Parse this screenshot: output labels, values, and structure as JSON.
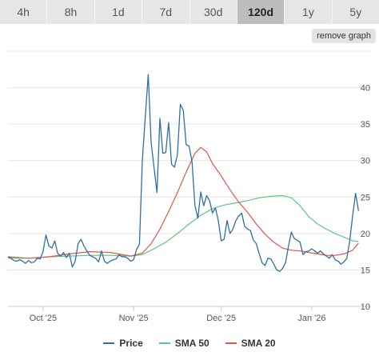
{
  "tabs": [
    {
      "label": "4h",
      "active": false
    },
    {
      "label": "8h",
      "active": false
    },
    {
      "label": "1d",
      "active": false
    },
    {
      "label": "7d",
      "active": false
    },
    {
      "label": "30d",
      "active": false
    },
    {
      "label": "120d",
      "active": true
    },
    {
      "label": "1y",
      "active": false
    },
    {
      "label": "5y",
      "active": false
    }
  ],
  "remove_graph_label": "remove graph",
  "colors": {
    "price": "#2f6fa3",
    "sma50": "#5cc97f",
    "sma20": "#e0554a",
    "grid": "#e6e6e6",
    "axis": "#c8c8c8"
  },
  "chart_data": {
    "type": "line",
    "title": "",
    "xlabel": "",
    "ylabel": "",
    "ylim": [
      10,
      45
    ],
    "yticks": [
      10,
      15,
      20,
      25,
      30,
      35,
      40
    ],
    "xlim": [
      "2025-09-19",
      "2026-01-21"
    ],
    "xticks": [
      {
        "label": "Oct '25",
        "date": "2025-10-01"
      },
      {
        "label": "Nov '25",
        "date": "2025-11-01"
      },
      {
        "label": "Dec '25",
        "date": "2025-12-01"
      },
      {
        "label": "Jan '26",
        "date": "2026-01-01"
      }
    ],
    "grid": true,
    "legend": "bottom",
    "series": [
      {
        "name": "Price",
        "color_key": "price",
        "points": [
          [
            "2025-09-19",
            16.8
          ],
          [
            "2025-09-20",
            16.6
          ],
          [
            "2025-09-21",
            16.3
          ],
          [
            "2025-09-22",
            16.2
          ],
          [
            "2025-09-23",
            16.4
          ],
          [
            "2025-09-24",
            16.2
          ],
          [
            "2025-09-25",
            15.9
          ],
          [
            "2025-09-26",
            16.3
          ],
          [
            "2025-09-27",
            16.0
          ],
          [
            "2025-09-28",
            16.1
          ],
          [
            "2025-09-29",
            16.6
          ],
          [
            "2025-09-30",
            16.5
          ],
          [
            "2025-10-01",
            17.5
          ],
          [
            "2025-10-02",
            19.8
          ],
          [
            "2025-10-03",
            18.3
          ],
          [
            "2025-10-04",
            18.0
          ],
          [
            "2025-10-05",
            19.0
          ],
          [
            "2025-10-06",
            17.3
          ],
          [
            "2025-10-07",
            16.9
          ],
          [
            "2025-10-08",
            17.4
          ],
          [
            "2025-10-09",
            16.7
          ],
          [
            "2025-10-10",
            17.3
          ],
          [
            "2025-10-11",
            15.4
          ],
          [
            "2025-10-12",
            16.2
          ],
          [
            "2025-10-13",
            18.6
          ],
          [
            "2025-10-14",
            19.2
          ],
          [
            "2025-10-15",
            18.3
          ],
          [
            "2025-10-16",
            17.6
          ],
          [
            "2025-10-17",
            17.0
          ],
          [
            "2025-10-18",
            16.8
          ],
          [
            "2025-10-19",
            16.6
          ],
          [
            "2025-10-20",
            16.1
          ],
          [
            "2025-10-21",
            17.6
          ],
          [
            "2025-10-22",
            16.2
          ],
          [
            "2025-10-23",
            15.9
          ],
          [
            "2025-10-24",
            16.2
          ],
          [
            "2025-10-25",
            16.4
          ],
          [
            "2025-10-26",
            16.5
          ],
          [
            "2025-10-27",
            17.1
          ],
          [
            "2025-10-28",
            16.8
          ],
          [
            "2025-10-29",
            16.8
          ],
          [
            "2025-10-30",
            16.6
          ],
          [
            "2025-10-31",
            16.2
          ],
          [
            "2025-11-01",
            16.4
          ],
          [
            "2025-11-02",
            17.8
          ],
          [
            "2025-11-03",
            18.5
          ],
          [
            "2025-11-04",
            30.0
          ],
          [
            "2025-11-05",
            36.0
          ],
          [
            "2025-11-06",
            41.8
          ],
          [
            "2025-11-07",
            32.5
          ],
          [
            "2025-11-08",
            29.0
          ],
          [
            "2025-11-09",
            25.6
          ],
          [
            "2025-11-10",
            35.8
          ],
          [
            "2025-11-11",
            31.0
          ],
          [
            "2025-11-12",
            31.1
          ],
          [
            "2025-11-13",
            35.2
          ],
          [
            "2025-11-14",
            29.5
          ],
          [
            "2025-11-15",
            29.1
          ],
          [
            "2025-11-16",
            30.8
          ],
          [
            "2025-11-17",
            37.7
          ],
          [
            "2025-11-18",
            36.9
          ],
          [
            "2025-11-19",
            32.2
          ],
          [
            "2025-11-20",
            32.0
          ],
          [
            "2025-11-21",
            29.8
          ],
          [
            "2025-11-22",
            23.8
          ],
          [
            "2025-11-23",
            22.1
          ],
          [
            "2025-11-24",
            25.7
          ],
          [
            "2025-11-25",
            23.8
          ],
          [
            "2025-11-26",
            25.2
          ],
          [
            "2025-11-27",
            24.5
          ],
          [
            "2025-11-28",
            22.8
          ],
          [
            "2025-11-29",
            23.5
          ],
          [
            "2025-11-30",
            21.8
          ],
          [
            "2025-12-01",
            19.0
          ],
          [
            "2025-12-02",
            19.2
          ],
          [
            "2025-12-03",
            21.8
          ],
          [
            "2025-12-04",
            20.0
          ],
          [
            "2025-12-05",
            20.6
          ],
          [
            "2025-12-06",
            21.8
          ],
          [
            "2025-12-07",
            22.4
          ],
          [
            "2025-12-08",
            22.8
          ],
          [
            "2025-12-09",
            21.0
          ],
          [
            "2025-12-10",
            20.6
          ],
          [
            "2025-12-11",
            20.4
          ],
          [
            "2025-12-12",
            19.1
          ],
          [
            "2025-12-13",
            18.6
          ],
          [
            "2025-12-14",
            17.2
          ],
          [
            "2025-12-15",
            16.0
          ],
          [
            "2025-12-16",
            15.6
          ],
          [
            "2025-12-17",
            16.6
          ],
          [
            "2025-12-18",
            16.5
          ],
          [
            "2025-12-19",
            15.8
          ],
          [
            "2025-12-20",
            15.0
          ],
          [
            "2025-12-21",
            14.8
          ],
          [
            "2025-12-22",
            15.2
          ],
          [
            "2025-12-23",
            16.0
          ],
          [
            "2025-12-24",
            18.2
          ],
          [
            "2025-12-25",
            20.2
          ],
          [
            "2025-12-26",
            19.3
          ],
          [
            "2025-12-27",
            19.1
          ],
          [
            "2025-12-28",
            18.8
          ],
          [
            "2025-12-29",
            17.1
          ],
          [
            "2025-12-30",
            17.5
          ],
          [
            "2025-12-31",
            17.6
          ],
          [
            "2026-01-01",
            17.9
          ],
          [
            "2026-01-02",
            17.6
          ],
          [
            "2026-01-03",
            17.3
          ],
          [
            "2026-01-04",
            17.6
          ],
          [
            "2026-01-05",
            17.2
          ],
          [
            "2026-01-06",
            16.9
          ],
          [
            "2026-01-07",
            16.6
          ],
          [
            "2026-01-08",
            17.1
          ],
          [
            "2026-01-09",
            16.4
          ],
          [
            "2026-01-10",
            16.2
          ],
          [
            "2026-01-11",
            15.8
          ],
          [
            "2026-01-12",
            16.1
          ],
          [
            "2026-01-13",
            16.6
          ],
          [
            "2026-01-14",
            19.0
          ],
          [
            "2026-01-15",
            22.5
          ],
          [
            "2026-01-16",
            25.5
          ],
          [
            "2026-01-17",
            23.1
          ]
        ]
      },
      {
        "name": "SMA 50",
        "color_key": "sma50",
        "points": [
          [
            "2025-09-19",
            16.6
          ],
          [
            "2025-09-26",
            16.6
          ],
          [
            "2025-10-03",
            16.8
          ],
          [
            "2025-10-10",
            16.9
          ],
          [
            "2025-10-17",
            17.0
          ],
          [
            "2025-10-24",
            17.0
          ],
          [
            "2025-10-31",
            16.9
          ],
          [
            "2025-11-04",
            17.1
          ],
          [
            "2025-11-08",
            17.9
          ],
          [
            "2025-11-12",
            18.8
          ],
          [
            "2025-11-16",
            20.0
          ],
          [
            "2025-11-20",
            21.3
          ],
          [
            "2025-11-24",
            22.5
          ],
          [
            "2025-11-28",
            23.4
          ],
          [
            "2025-12-02",
            23.9
          ],
          [
            "2025-12-06",
            24.2
          ],
          [
            "2025-12-10",
            24.5
          ],
          [
            "2025-12-14",
            24.9
          ],
          [
            "2025-12-18",
            25.1
          ],
          [
            "2025-12-22",
            25.2
          ],
          [
            "2025-12-25",
            24.9
          ],
          [
            "2025-12-28",
            23.8
          ],
          [
            "2025-12-31",
            22.3
          ],
          [
            "2026-01-03",
            21.3
          ],
          [
            "2026-01-06",
            20.6
          ],
          [
            "2026-01-09",
            20.0
          ],
          [
            "2026-01-12",
            19.5
          ],
          [
            "2026-01-15",
            19.0
          ],
          [
            "2026-01-17",
            18.9
          ]
        ]
      },
      {
        "name": "SMA 20",
        "color_key": "sma20",
        "points": [
          [
            "2025-09-19",
            16.8
          ],
          [
            "2025-09-26",
            16.6
          ],
          [
            "2025-10-03",
            16.8
          ],
          [
            "2025-10-10",
            17.2
          ],
          [
            "2025-10-17",
            17.5
          ],
          [
            "2025-10-24",
            17.4
          ],
          [
            "2025-10-31",
            16.9
          ],
          [
            "2025-11-04",
            17.3
          ],
          [
            "2025-11-07",
            18.6
          ],
          [
            "2025-11-10",
            20.6
          ],
          [
            "2025-11-13",
            23.0
          ],
          [
            "2025-11-16",
            25.6
          ],
          [
            "2025-11-19",
            28.4
          ],
          [
            "2025-11-22",
            31.0
          ],
          [
            "2025-11-24",
            31.8
          ],
          [
            "2025-11-26",
            31.2
          ],
          [
            "2025-11-28",
            29.6
          ],
          [
            "2025-12-01",
            27.9
          ],
          [
            "2025-12-04",
            26.0
          ],
          [
            "2025-12-07",
            24.3
          ],
          [
            "2025-12-10",
            22.9
          ],
          [
            "2025-12-13",
            21.3
          ],
          [
            "2025-12-16",
            19.9
          ],
          [
            "2025-12-19",
            18.8
          ],
          [
            "2025-12-22",
            18.0
          ],
          [
            "2025-12-25",
            17.7
          ],
          [
            "2025-12-28",
            17.6
          ],
          [
            "2025-12-31",
            17.4
          ],
          [
            "2026-01-03",
            17.2
          ],
          [
            "2026-01-06",
            17.0
          ],
          [
            "2026-01-09",
            17.0
          ],
          [
            "2026-01-12",
            17.2
          ],
          [
            "2026-01-15",
            17.7
          ],
          [
            "2026-01-17",
            18.7
          ]
        ]
      }
    ]
  }
}
